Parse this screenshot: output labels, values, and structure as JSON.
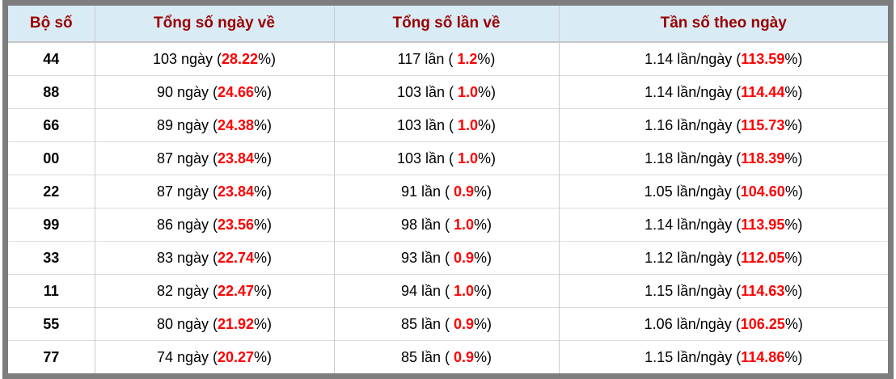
{
  "colors": {
    "frame_border": "#7d7d7d",
    "header_bg": "#d9ecf6",
    "header_text": "#9a0000",
    "highlight_red": "#ff0000",
    "grid_line": "#cccccc"
  },
  "table": {
    "columns": [
      {
        "label": "Bộ số"
      },
      {
        "label": "Tổng số ngày về"
      },
      {
        "label": "Tổng số lần về"
      },
      {
        "label": "Tần số theo ngày"
      }
    ],
    "rows": [
      {
        "so": "44",
        "ngay": {
          "pre": "103 ngày (",
          "red": "28.22",
          "post": "%)"
        },
        "lan": {
          "pre": "117 lần ( ",
          "red": "1.2",
          "post": "%)"
        },
        "tan": {
          "pre": "1.14 lần/ngày (",
          "red": "113.59",
          "post": "%)"
        }
      },
      {
        "so": "88",
        "ngay": {
          "pre": "90 ngày (",
          "red": "24.66",
          "post": "%)"
        },
        "lan": {
          "pre": "103 lần ( ",
          "red": "1.0",
          "post": "%)"
        },
        "tan": {
          "pre": "1.14 lần/ngày (",
          "red": "114.44",
          "post": "%)"
        }
      },
      {
        "so": "66",
        "ngay": {
          "pre": "89 ngày (",
          "red": "24.38",
          "post": "%)"
        },
        "lan": {
          "pre": "103 lần ( ",
          "red": "1.0",
          "post": "%)"
        },
        "tan": {
          "pre": "1.16 lần/ngày (",
          "red": "115.73",
          "post": "%)"
        }
      },
      {
        "so": "00",
        "ngay": {
          "pre": "87 ngày (",
          "red": "23.84",
          "post": "%)"
        },
        "lan": {
          "pre": "103 lần ( ",
          "red": "1.0",
          "post": "%)"
        },
        "tan": {
          "pre": "1.18 lần/ngày (",
          "red": "118.39",
          "post": "%)"
        }
      },
      {
        "so": "22",
        "ngay": {
          "pre": "87 ngày (",
          "red": "23.84",
          "post": "%)"
        },
        "lan": {
          "pre": "91 lần ( ",
          "red": "0.9",
          "post": "%)"
        },
        "tan": {
          "pre": "1.05 lần/ngày (",
          "red": "104.60",
          "post": "%)"
        }
      },
      {
        "so": "99",
        "ngay": {
          "pre": "86 ngày (",
          "red": "23.56",
          "post": "%)"
        },
        "lan": {
          "pre": "98 lần ( ",
          "red": "1.0",
          "post": "%)"
        },
        "tan": {
          "pre": "1.14 lần/ngày (",
          "red": "113.95",
          "post": "%)"
        }
      },
      {
        "so": "33",
        "ngay": {
          "pre": "83 ngày (",
          "red": "22.74",
          "post": "%)"
        },
        "lan": {
          "pre": "93 lần ( ",
          "red": "0.9",
          "post": "%)"
        },
        "tan": {
          "pre": "1.12 lần/ngày (",
          "red": "112.05",
          "post": "%)"
        }
      },
      {
        "so": "11",
        "ngay": {
          "pre": "82 ngày (",
          "red": "22.47",
          "post": "%)"
        },
        "lan": {
          "pre": "94 lần ( ",
          "red": "1.0",
          "post": "%)"
        },
        "tan": {
          "pre": "1.15 lần/ngày (",
          "red": "114.63",
          "post": "%)"
        }
      },
      {
        "so": "55",
        "ngay": {
          "pre": "80 ngày (",
          "red": "21.92",
          "post": "%)"
        },
        "lan": {
          "pre": "85 lần ( ",
          "red": "0.9",
          "post": "%)"
        },
        "tan": {
          "pre": "1.06 lần/ngày (",
          "red": "106.25",
          "post": "%)"
        }
      },
      {
        "so": "77",
        "ngay": {
          "pre": "74 ngày (",
          "red": "20.27",
          "post": "%)"
        },
        "lan": {
          "pre": "85 lần ( ",
          "red": "0.9",
          "post": "%)"
        },
        "tan": {
          "pre": "1.15 lần/ngày (",
          "red": "114.86",
          "post": "%)"
        }
      }
    ]
  }
}
